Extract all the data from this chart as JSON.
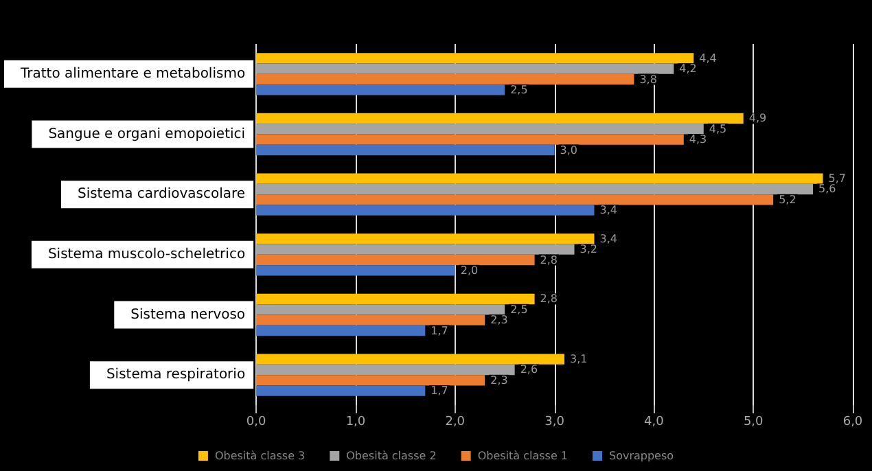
{
  "chart_data": {
    "type": "bar",
    "orientation": "horizontal",
    "categories": [
      "Tratto alimentare e metabolismo",
      "Sangue e organi emopoietici",
      "Sistema cardiovascolare",
      "Sistema muscolo-scheletrico",
      "Sistema nervoso",
      "Sistema respiratorio"
    ],
    "series": [
      {
        "name": "Obesità classe 3",
        "color": "#ffc000",
        "values": [
          4.4,
          4.9,
          5.7,
          3.4,
          2.8,
          3.1
        ],
        "value_labels": [
          "4,4",
          "4,9",
          "5,7",
          "3,4",
          "2,8",
          "3,1"
        ]
      },
      {
        "name": "Obesità classe 2",
        "color": "#a5a5a5",
        "values": [
          4.2,
          4.5,
          5.6,
          3.2,
          2.5,
          2.6
        ],
        "value_labels": [
          "4,2",
          "4,5",
          "5,6",
          "3,2",
          "2,5",
          "2,6"
        ]
      },
      {
        "name": "Obesità classe 1",
        "color": "#ed7d31",
        "values": [
          3.8,
          4.3,
          5.2,
          2.8,
          2.3,
          2.3
        ],
        "value_labels": [
          "3,8",
          "4,3",
          "5,2",
          "2,8",
          "2,3",
          "2,3"
        ]
      },
      {
        "name": "Sovrappeso",
        "color": "#4472c4",
        "values": [
          2.5,
          3.0,
          3.4,
          2.0,
          1.7,
          1.7
        ],
        "value_labels": [
          "2,5",
          "3,0",
          "3,4",
          "2,0",
          "1,7",
          "1,7"
        ]
      }
    ],
    "xlim": [
      0,
      6
    ],
    "xticks": [
      {
        "value": 0,
        "label": "0,0"
      },
      {
        "value": 1,
        "label": "1,0"
      },
      {
        "value": 2,
        "label": "2,0"
      },
      {
        "value": 3,
        "label": "3,0"
      },
      {
        "value": 4,
        "label": "4,0"
      },
      {
        "value": 5,
        "label": "5,0"
      },
      {
        "value": 6,
        "label": "6,0"
      }
    ],
    "grid": "x",
    "legend": "bottom"
  }
}
